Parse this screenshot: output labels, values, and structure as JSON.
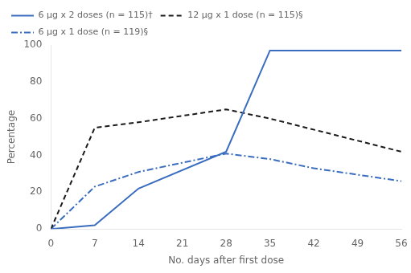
{
  "chart_data": {
    "type": "line",
    "xlabel": "No. days after first dose",
    "ylabel": "Percentage",
    "xlim": [
      0,
      56
    ],
    "ylim": [
      0,
      100
    ],
    "xticks": [
      0,
      7,
      14,
      21,
      28,
      35,
      42,
      49,
      56
    ],
    "yticks": [
      0,
      20,
      40,
      60,
      80,
      100
    ],
    "grid": false,
    "legend": "upper left",
    "series": [
      {
        "name": "6 μg x 2 doses (n = 115)†",
        "color": "#3a6dbf",
        "line_style": "solid",
        "x": [
          0,
          7,
          14,
          28,
          35,
          56
        ],
        "values": [
          0,
          2,
          22,
          42,
          97,
          97
        ]
      },
      {
        "name": "12 μg x 1 dose (n = 115)§",
        "color": "#1a1a1a",
        "line_style": "dashed",
        "x": [
          0,
          7,
          14,
          28,
          35,
          56
        ],
        "values": [
          0,
          55,
          58,
          65,
          60,
          42
        ]
      },
      {
        "name": "6 μg x 1 dose (n = 119)§",
        "color": "#3a6dbf",
        "line_style": "dashdot",
        "x": [
          0,
          7,
          14,
          28,
          35,
          42,
          56
        ],
        "values": [
          0,
          23,
          31,
          41,
          38,
          33,
          26
        ]
      }
    ]
  }
}
